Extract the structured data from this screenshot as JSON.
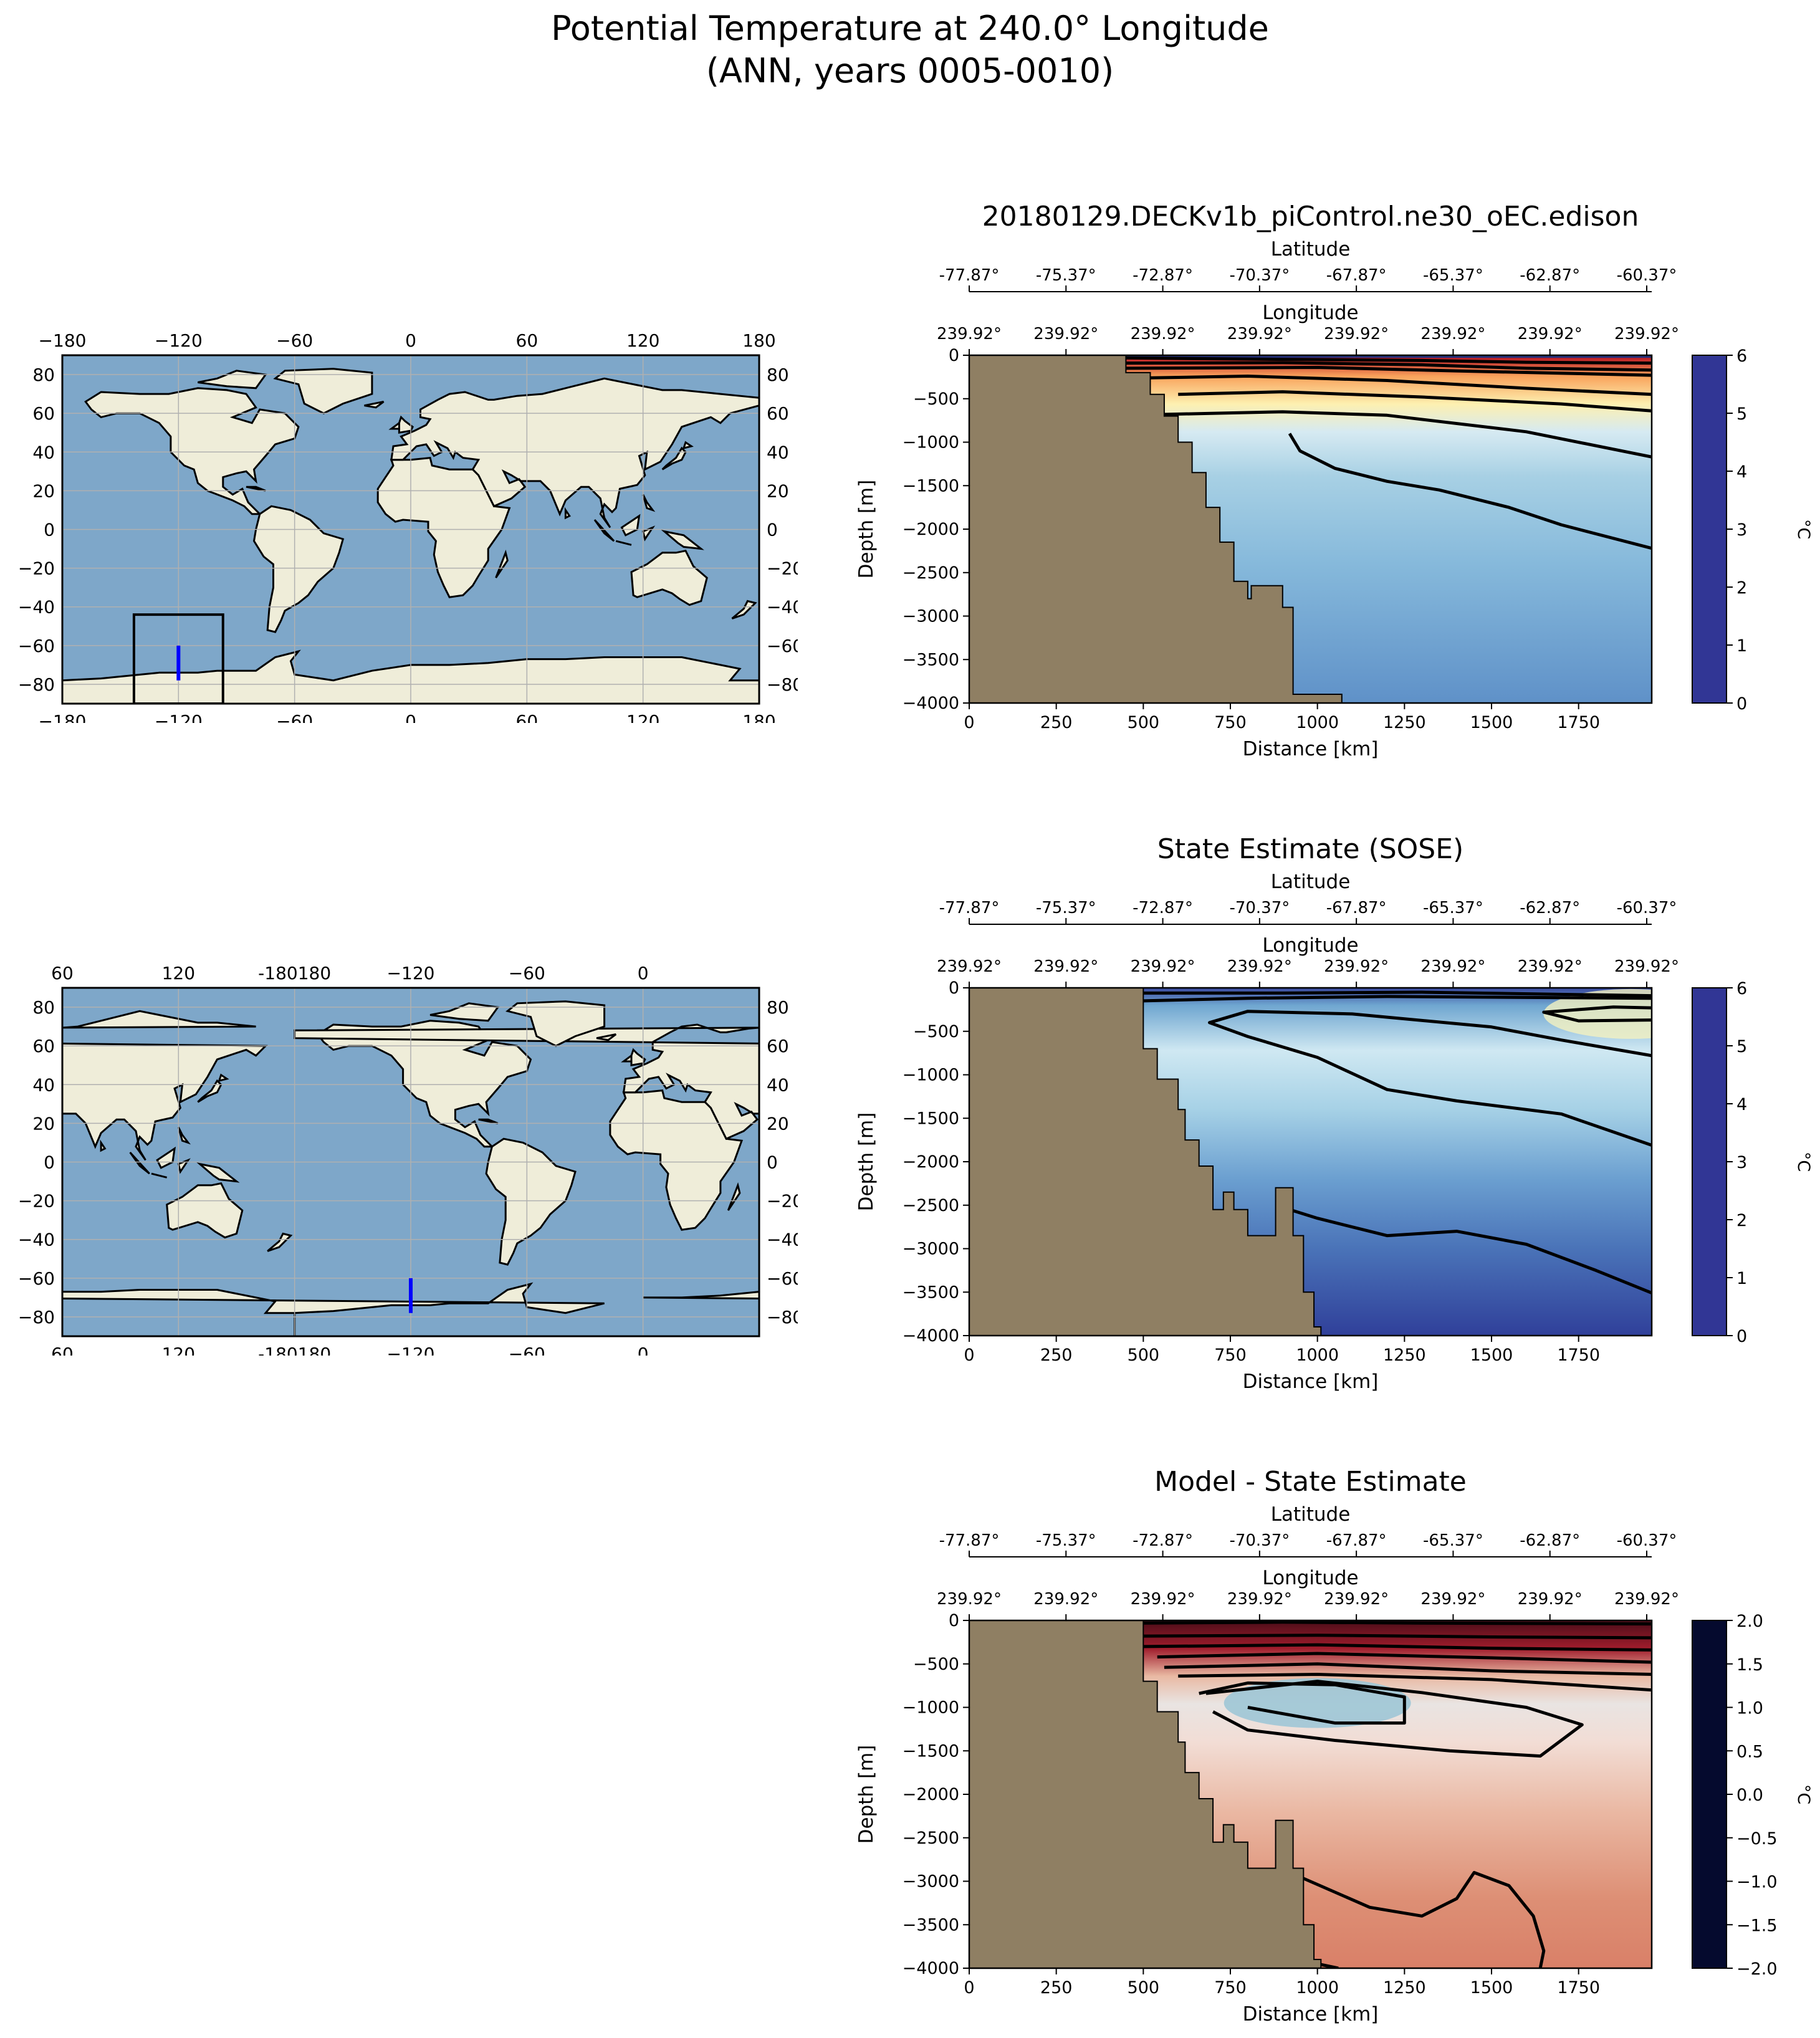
{
  "title": {
    "line1": "Potential Temperature at 240.0° Longitude",
    "line2": "(ANN, years 0005-0010)"
  },
  "colors": {
    "land_section": "#8f7f63",
    "ocean_map": "#7ea7c9",
    "land_map": "#efedd9",
    "transect": "#0000ff"
  },
  "maps": [
    {
      "id": "map-centered-0",
      "lon_ticks_top": [
        "−180",
        "−120",
        "−60",
        "0",
        "60",
        "120",
        "180"
      ],
      "lon_ticks_bottom": [
        "−180",
        "−120",
        "−60",
        "0",
        "60",
        "120",
        "180"
      ],
      "lat_ticks": [
        "80",
        "60",
        "40",
        "20",
        "0",
        "−20",
        "−40",
        "−60",
        "−80"
      ],
      "lon_range": [
        -180,
        180
      ],
      "lat_range": [
        -90,
        90
      ],
      "grid": true,
      "box": {
        "lon_min": -143,
        "lon_max": -97,
        "lat_min": -90,
        "lat_max": -44
      },
      "transect": {
        "lon": -120,
        "lat_min": -78,
        "lat_max": -60
      }
    },
    {
      "id": "map-centered-240",
      "lon_ticks_top": [
        "60",
        "120",
        "-180180",
        "−120",
        "−60",
        "0"
      ],
      "lon_ticks_bottom": [
        "60",
        "120",
        "-180180",
        "−120",
        "−60",
        "0"
      ],
      "lat_ticks": [
        "80",
        "60",
        "40",
        "20",
        "0",
        "−20",
        "−40",
        "−60",
        "−80"
      ],
      "lon_range": [
        60,
        420
      ],
      "lat_range": [
        -90,
        90
      ],
      "grid": true,
      "transect": {
        "lon": -120,
        "lat_min": -78,
        "lat_max": -60
      }
    }
  ],
  "chart_data": [
    {
      "type": "heatmap",
      "title": "20180129.DECKv1b_piControl.ne30_oEC.edison",
      "xlabel": "Distance [km]",
      "ylabel": "Depth [m]",
      "xlim": [
        0,
        1960
      ],
      "ylim": [
        -4000,
        0
      ],
      "x_ticks": [
        "0",
        "250",
        "500",
        "750",
        "1000",
        "1250",
        "1500",
        "1750"
      ],
      "y_ticks": [
        "0",
        "−500",
        "−1000",
        "−1500",
        "−2000",
        "−2500",
        "−3000",
        "−3500",
        "−4000"
      ],
      "top_axis_1": {
        "label": "Latitude",
        "ticks": [
          "-77.87°",
          "-75.37°",
          "-72.87°",
          "-70.37°",
          "-67.87°",
          "-65.37°",
          "-62.87°",
          "-60.37°"
        ]
      },
      "top_axis_2": {
        "label": "Longitude",
        "ticks": [
          "239.92°",
          "239.92°",
          "239.92°",
          "239.92°",
          "239.92°",
          "239.92°",
          "239.92°",
          "239.92°"
        ]
      },
      "colorbar": {
        "label": "°C",
        "range": [
          0,
          6
        ],
        "ticks": [
          "0",
          "1",
          "2",
          "3",
          "4",
          "5",
          "6"
        ],
        "colormap": "RdYlBu_r"
      },
      "bathymetry": [
        [
          0,
          -4000
        ],
        [
          0,
          0
        ],
        [
          450,
          0
        ],
        [
          450,
          -200
        ],
        [
          520,
          -200
        ],
        [
          520,
          -450
        ],
        [
          560,
          -450
        ],
        [
          560,
          -700
        ],
        [
          600,
          -700
        ],
        [
          600,
          -1000
        ],
        [
          640,
          -1000
        ],
        [
          640,
          -1350
        ],
        [
          680,
          -1350
        ],
        [
          680,
          -1750
        ],
        [
          720,
          -1750
        ],
        [
          720,
          -2150
        ],
        [
          760,
          -2150
        ],
        [
          760,
          -2600
        ],
        [
          800,
          -2600
        ],
        [
          800,
          -2800
        ],
        [
          810,
          -2800
        ],
        [
          810,
          -2650
        ],
        [
          900,
          -2650
        ],
        [
          900,
          -2900
        ],
        [
          930,
          -2900
        ],
        [
          930,
          -3900
        ],
        [
          1070,
          -3900
        ],
        [
          1070,
          -4000
        ]
      ],
      "contours": [
        [
          [
            450,
            -30
          ],
          [
            700,
            -40
          ],
          [
            1000,
            -50
          ],
          [
            1300,
            -60
          ],
          [
            1600,
            -80
          ],
          [
            1960,
            -90
          ]
        ],
        [
          [
            450,
            -90
          ],
          [
            900,
            -85
          ],
          [
            1300,
            -110
          ],
          [
            1600,
            -150
          ],
          [
            1960,
            -170
          ]
        ],
        [
          [
            450,
            -150
          ],
          [
            1000,
            -140
          ],
          [
            1400,
            -180
          ],
          [
            1960,
            -230
          ]
        ],
        [
          [
            520,
            -260
          ],
          [
            800,
            -240
          ],
          [
            1200,
            -290
          ],
          [
            1600,
            -380
          ],
          [
            1960,
            -450
          ]
        ],
        [
          [
            600,
            -450
          ],
          [
            900,
            -420
          ],
          [
            1300,
            -480
          ],
          [
            1700,
            -560
          ],
          [
            1960,
            -640
          ]
        ],
        [
          [
            560,
            -680
          ],
          [
            900,
            -650
          ],
          [
            1200,
            -690
          ],
          [
            1600,
            -880
          ],
          [
            1960,
            -1170
          ]
        ],
        [
          [
            1960,
            -2220
          ],
          [
            1700,
            -1950
          ],
          [
            1550,
            -1750
          ],
          [
            1350,
            -1550
          ],
          [
            1200,
            -1450
          ],
          [
            1050,
            -1300
          ],
          [
            950,
            -1100
          ],
          [
            920,
            -900
          ]
        ]
      ]
    },
    {
      "type": "heatmap",
      "title": "State Estimate (SOSE)",
      "xlabel": "Distance [km]",
      "ylabel": "Depth [m]",
      "xlim": [
        0,
        1960
      ],
      "ylim": [
        -4000,
        0
      ],
      "x_ticks": [
        "0",
        "250",
        "500",
        "750",
        "1000",
        "1250",
        "1500",
        "1750"
      ],
      "y_ticks": [
        "0",
        "−500",
        "−1000",
        "−1500",
        "−2000",
        "−2500",
        "−3000",
        "−3500",
        "−4000"
      ],
      "top_axis_1": {
        "label": "Latitude",
        "ticks": [
          "-77.87°",
          "-75.37°",
          "-72.87°",
          "-70.37°",
          "-67.87°",
          "-65.37°",
          "-62.87°",
          "-60.37°"
        ]
      },
      "top_axis_2": {
        "label": "Longitude",
        "ticks": [
          "239.92°",
          "239.92°",
          "239.92°",
          "239.92°",
          "239.92°",
          "239.92°",
          "239.92°",
          "239.92°"
        ]
      },
      "colorbar": {
        "label": "°C",
        "range": [
          0,
          6
        ],
        "ticks": [
          "0",
          "1",
          "2",
          "3",
          "4",
          "5",
          "6"
        ],
        "colormap": "RdYlBu_r"
      },
      "bathymetry": [
        [
          0,
          -4000
        ],
        [
          0,
          0
        ],
        [
          500,
          0
        ],
        [
          500,
          -700
        ],
        [
          540,
          -700
        ],
        [
          540,
          -1050
        ],
        [
          600,
          -1050
        ],
        [
          600,
          -1400
        ],
        [
          620,
          -1400
        ],
        [
          620,
          -1750
        ],
        [
          660,
          -1750
        ],
        [
          660,
          -2050
        ],
        [
          700,
          -2050
        ],
        [
          700,
          -2550
        ],
        [
          730,
          -2550
        ],
        [
          730,
          -2350
        ],
        [
          760,
          -2350
        ],
        [
          760,
          -2550
        ],
        [
          800,
          -2550
        ],
        [
          800,
          -2850
        ],
        [
          880,
          -2850
        ],
        [
          880,
          -2300
        ],
        [
          930,
          -2300
        ],
        [
          930,
          -2850
        ],
        [
          960,
          -2850
        ],
        [
          960,
          -3500
        ],
        [
          990,
          -3500
        ],
        [
          990,
          -3900
        ],
        [
          1010,
          -3900
        ],
        [
          1010,
          -4000
        ]
      ],
      "contours": [
        [
          [
            500,
            -60
          ],
          [
            900,
            -60
          ],
          [
            1300,
            -50
          ],
          [
            1960,
            -90
          ]
        ],
        [
          [
            500,
            -150
          ],
          [
            800,
            -120
          ],
          [
            1200,
            -100
          ],
          [
            1960,
            -120
          ]
        ],
        [
          [
            1960,
            -370
          ],
          [
            1750,
            -380
          ],
          [
            1650,
            -280
          ],
          [
            1850,
            -220
          ],
          [
            1960,
            -230
          ]
        ],
        [
          [
            1960,
            -780
          ],
          [
            1700,
            -600
          ],
          [
            1500,
            -450
          ],
          [
            1100,
            -300
          ],
          [
            800,
            -270
          ],
          [
            690,
            -400
          ],
          [
            800,
            -560
          ],
          [
            1000,
            -800
          ],
          [
            1200,
            -1170
          ],
          [
            1400,
            -1300
          ],
          [
            1700,
            -1450
          ],
          [
            1960,
            -1810
          ]
        ],
        [
          [
            1960,
            -3510
          ],
          [
            1800,
            -3250
          ],
          [
            1600,
            -2950
          ],
          [
            1400,
            -2800
          ],
          [
            1200,
            -2850
          ],
          [
            1000,
            -2650
          ],
          [
            880,
            -2500
          ]
        ]
      ]
    },
    {
      "type": "heatmap",
      "title": "Model - State Estimate",
      "xlabel": "Distance [km]",
      "ylabel": "Depth [m]",
      "xlim": [
        0,
        1960
      ],
      "ylim": [
        -4000,
        0
      ],
      "x_ticks": [
        "0",
        "250",
        "500",
        "750",
        "1000",
        "1250",
        "1500",
        "1750"
      ],
      "y_ticks": [
        "0",
        "−500",
        "−1000",
        "−1500",
        "−2000",
        "−2500",
        "−3000",
        "−3500",
        "−4000"
      ],
      "top_axis_1": {
        "label": "Latitude",
        "ticks": [
          "-77.87°",
          "-75.37°",
          "-72.87°",
          "-70.37°",
          "-67.87°",
          "-65.37°",
          "-62.87°",
          "-60.37°"
        ]
      },
      "top_axis_2": {
        "label": "Longitude",
        "ticks": [
          "239.92°",
          "239.92°",
          "239.92°",
          "239.92°",
          "239.92°",
          "239.92°",
          "239.92°",
          "239.92°"
        ]
      },
      "colorbar": {
        "label": "°C",
        "range": [
          -2,
          2
        ],
        "ticks": [
          "−2.0",
          "−1.5",
          "−1.0",
          "−0.5",
          "0.0",
          "0.5",
          "1.0",
          "1.5",
          "2.0"
        ],
        "colormap": "RdBu_r"
      },
      "bathymetry": [
        [
          0,
          -4000
        ],
        [
          0,
          0
        ],
        [
          500,
          0
        ],
        [
          500,
          -700
        ],
        [
          540,
          -700
        ],
        [
          540,
          -1050
        ],
        [
          600,
          -1050
        ],
        [
          600,
          -1400
        ],
        [
          620,
          -1400
        ],
        [
          620,
          -1750
        ],
        [
          660,
          -1750
        ],
        [
          660,
          -2050
        ],
        [
          700,
          -2050
        ],
        [
          700,
          -2550
        ],
        [
          730,
          -2550
        ],
        [
          730,
          -2350
        ],
        [
          760,
          -2350
        ],
        [
          760,
          -2550
        ],
        [
          800,
          -2550
        ],
        [
          800,
          -2850
        ],
        [
          880,
          -2850
        ],
        [
          880,
          -2300
        ],
        [
          930,
          -2300
        ],
        [
          930,
          -2850
        ],
        [
          960,
          -2850
        ],
        [
          960,
          -3500
        ],
        [
          990,
          -3500
        ],
        [
          990,
          -3900
        ],
        [
          1010,
          -3900
        ],
        [
          1010,
          -4000
        ]
      ],
      "contours": [
        [
          [
            500,
            -30
          ],
          [
            900,
            -20
          ],
          [
            1300,
            -30
          ],
          [
            1960,
            -40
          ]
        ],
        [
          [
            500,
            -180
          ],
          [
            1000,
            -170
          ],
          [
            1500,
            -190
          ],
          [
            1960,
            -200
          ]
        ],
        [
          [
            500,
            -300
          ],
          [
            1000,
            -280
          ],
          [
            1500,
            -320
          ],
          [
            1960,
            -340
          ]
        ],
        [
          [
            540,
            -420
          ],
          [
            1000,
            -380
          ],
          [
            1500,
            -430
          ],
          [
            1960,
            -480
          ]
        ],
        [
          [
            560,
            -540
          ],
          [
            1000,
            -500
          ],
          [
            1500,
            -580
          ],
          [
            1960,
            -620
          ]
        ],
        [
          [
            600,
            -640
          ],
          [
            1000,
            -620
          ],
          [
            1500,
            -680
          ],
          [
            1960,
            -800
          ]
        ],
        [
          [
            680,
            -840
          ],
          [
            1000,
            -700
          ],
          [
            1300,
            -830
          ],
          [
            1600,
            -1000
          ],
          [
            1760,
            -1200
          ],
          [
            1640,
            -1560
          ],
          [
            1380,
            -1500
          ],
          [
            1050,
            -1380
          ],
          [
            800,
            -1260
          ],
          [
            700,
            -1050
          ]
        ],
        [
          [
            660,
            -840
          ],
          [
            800,
            -720
          ],
          [
            1050,
            -740
          ],
          [
            1250,
            -880
          ],
          [
            1250,
            -1180
          ],
          [
            1050,
            -1180
          ],
          [
            800,
            -1000
          ]
        ],
        [
          [
            950,
            -2950
          ],
          [
            1150,
            -3300
          ],
          [
            1300,
            -3400
          ],
          [
            1400,
            -3200
          ],
          [
            1450,
            -2900
          ],
          [
            1550,
            -3050
          ],
          [
            1620,
            -3400
          ],
          [
            1650,
            -3800
          ],
          [
            1640,
            -4000
          ]
        ],
        [
          [
            1000,
            -3950
          ],
          [
            1060,
            -4000
          ]
        ]
      ]
    }
  ]
}
